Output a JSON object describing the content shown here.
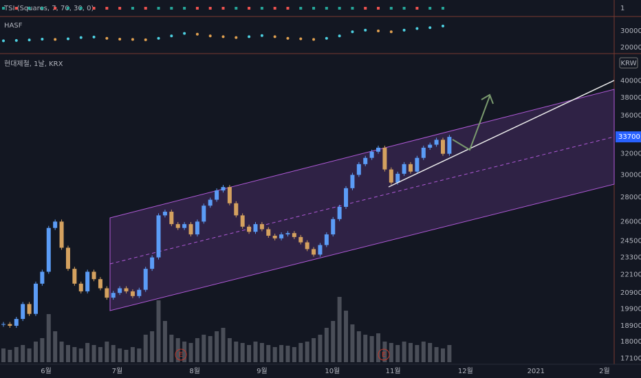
{
  "chart_data": [
    {
      "type": "squares",
      "title": "TSI (Squares, 7, 70, 30, 0)",
      "ylim": [
        0,
        2
      ],
      "yticks": [
        1
      ],
      "colors": [
        "#26a69a",
        "#ef5350",
        "#26a69a",
        "#26a69a",
        "#ef5350",
        "#26a69a",
        "#26a69a",
        "#ef5350",
        "#ef5350",
        "#ef5350",
        "#26a69a",
        "#ef5350",
        "#26a69a",
        "#26a69a",
        "#26a69a",
        "#ef5350",
        "#ef5350",
        "#ef5350",
        "#26a69a",
        "#ef5350",
        "#26a69a",
        "#ef5350",
        "#ef5350",
        "#26a69a",
        "#26a69a",
        "#26a69a",
        "#26a69a",
        "#26a69a",
        "#ef5350",
        "#ef5350",
        "#26a69a",
        "#26a69a",
        "#ef5350",
        "#26a69a",
        "#26a69a"
      ]
    },
    {
      "type": "dots",
      "title": "HASF",
      "ylim": [
        17000,
        38000
      ],
      "yticks": [
        20000,
        30000
      ],
      "values": [
        24000,
        24200,
        24500,
        25000,
        24800,
        25200,
        26000,
        26300,
        25500,
        25000,
        24800,
        24600,
        25500,
        27000,
        28500,
        28000,
        27000,
        26500,
        26000,
        26500,
        27200,
        26500,
        25500,
        25200,
        24800,
        25500,
        27000,
        29500,
        30500,
        30000,
        29500,
        30500,
        31500,
        32000,
        33000
      ]
    },
    {
      "type": "candles",
      "title": "현대제철, 1날, KRX",
      "currency": "KRW",
      "log_scale": true,
      "ylim": [
        16800,
        43300
      ],
      "yticks": [
        17100,
        18000,
        18900,
        19900,
        20900,
        22100,
        23300,
        24500,
        26000,
        28000,
        30000,
        32000,
        36000,
        38000,
        40000
      ],
      "last_price": 33700,
      "up_color": "#5b9cf6",
      "down_color": "#d4a15f",
      "xlim": [
        0,
        94.5
      ],
      "xticks": [
        {
          "value": 6.6,
          "label": "6월"
        },
        {
          "value": 17.6,
          "label": "7월"
        },
        {
          "value": 29.6,
          "label": "8월"
        },
        {
          "value": 40,
          "label": "9월"
        },
        {
          "value": 50.9,
          "label": "10월"
        },
        {
          "value": 60.3,
          "label": "11월"
        },
        {
          "value": 71.5,
          "label": "12월"
        },
        {
          "value": 82.4,
          "label": "2021"
        },
        {
          "value": 93,
          "label": "2월"
        }
      ],
      "events": [
        "E",
        "E"
      ],
      "values": [
        19000,
        18900,
        19300,
        20200,
        19600,
        21500,
        22300,
        25500,
        26000,
        24000,
        22500,
        21500,
        21000,
        22300,
        21800,
        21200,
        20600,
        20900,
        21200,
        21000,
        20700,
        21100,
        22500,
        23300,
        26500,
        26800,
        25800,
        25500,
        25800,
        25000,
        26000,
        27300,
        27800,
        28600,
        28900,
        27500,
        26500,
        25600,
        25200,
        25800,
        25400,
        24900,
        24700,
        25000,
        25100,
        24800,
        24400,
        23900,
        23500,
        24200,
        25000,
        26200,
        27200,
        28800,
        30000,
        31000,
        31600,
        32200,
        32600,
        30500,
        29300,
        30100,
        31000,
        30300,
        31600,
        32600,
        32900,
        33400,
        32000,
        33700
      ],
      "volume": [
        20,
        18,
        22,
        25,
        20,
        30,
        35,
        70,
        45,
        30,
        25,
        22,
        20,
        28,
        25,
        22,
        30,
        25,
        20,
        18,
        22,
        20,
        40,
        45,
        90,
        60,
        40,
        35,
        30,
        28,
        35,
        40,
        38,
        45,
        50,
        35,
        30,
        28,
        25,
        30,
        28,
        25,
        22,
        25,
        24,
        22,
        28,
        30,
        35,
        40,
        50,
        60,
        95,
        75,
        55,
        45,
        40,
        38,
        42,
        30,
        28,
        25,
        30,
        28,
        25,
        30,
        28,
        22,
        20,
        25
      ]
    }
  ]
}
